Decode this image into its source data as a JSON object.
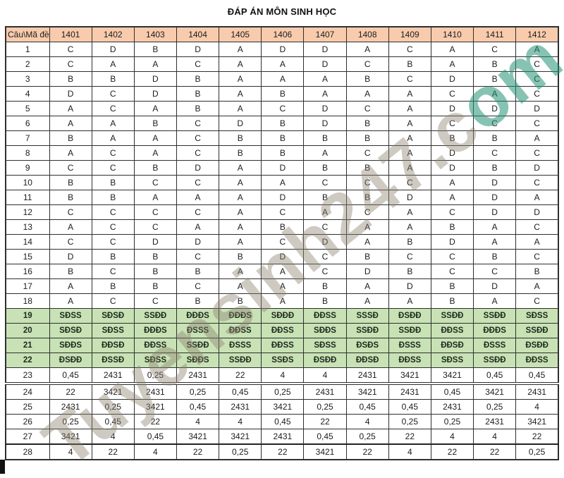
{
  "page": {
    "title": "ĐÁP ÁN MÔN SINH HỌC"
  },
  "watermark": {
    "text_main": "Tuyensinh247.c",
    "text_tail": "om"
  },
  "colors": {
    "header_bg": "#F8CBAD",
    "green_row_bg": "#C8E2B5",
    "border": "#2f2f2f",
    "watermark_gray": "rgba(138,128,110,0.42)",
    "watermark_green": "rgba(36,146,116,0.55)"
  },
  "table": {
    "corner_label": "Câu\\Mã đề",
    "code_headers": [
      "1401",
      "1402",
      "1403",
      "1404",
      "1405",
      "1406",
      "1407",
      "1408",
      "1409",
      "1410",
      "1411",
      "1412"
    ],
    "rows": [
      {
        "cau": "1",
        "type": "plain",
        "cells": [
          "C",
          "D",
          "B",
          "D",
          "A",
          "D",
          "D",
          "A",
          "C",
          "A",
          "C",
          "A"
        ]
      },
      {
        "cau": "2",
        "type": "plain",
        "cells": [
          "C",
          "A",
          "A",
          "C",
          "A",
          "A",
          "D",
          "C",
          "B",
          "A",
          "B",
          "C"
        ]
      },
      {
        "cau": "3",
        "type": "plain",
        "cells": [
          "B",
          "B",
          "D",
          "B",
          "A",
          "A",
          "A",
          "B",
          "C",
          "D",
          "B",
          "C"
        ]
      },
      {
        "cau": "4",
        "type": "plain",
        "cells": [
          "D",
          "C",
          "D",
          "B",
          "A",
          "B",
          "A",
          "A",
          "A",
          "C",
          "A",
          "C"
        ]
      },
      {
        "cau": "5",
        "type": "plain",
        "cells": [
          "A",
          "C",
          "A",
          "B",
          "A",
          "C",
          "D",
          "C",
          "A",
          "D",
          "D",
          "D"
        ]
      },
      {
        "cau": "6",
        "type": "plain",
        "cells": [
          "A",
          "A",
          "B",
          "C",
          "D",
          "B",
          "D",
          "B",
          "A",
          "C",
          "C",
          "C"
        ]
      },
      {
        "cau": "7",
        "type": "plain",
        "cells": [
          "B",
          "A",
          "A",
          "C",
          "B",
          "B",
          "B",
          "B",
          "A",
          "B",
          "B",
          "A"
        ]
      },
      {
        "cau": "8",
        "type": "plain",
        "cells": [
          "A",
          "C",
          "A",
          "C",
          "B",
          "B",
          "A",
          "C",
          "A",
          "D",
          "C",
          "C"
        ]
      },
      {
        "cau": "9",
        "type": "plain",
        "cells": [
          "C",
          "C",
          "B",
          "D",
          "A",
          "D",
          "B",
          "B",
          "A",
          "D",
          "B",
          "D"
        ]
      },
      {
        "cau": "10",
        "type": "plain",
        "cells": [
          "B",
          "B",
          "C",
          "C",
          "A",
          "A",
          "C",
          "C",
          "C",
          "A",
          "D",
          "C"
        ]
      },
      {
        "cau": "11",
        "type": "plain",
        "cells": [
          "B",
          "B",
          "A",
          "A",
          "A",
          "D",
          "B",
          "B",
          "D",
          "A",
          "D",
          "A"
        ]
      },
      {
        "cau": "12",
        "type": "plain",
        "cells": [
          "C",
          "C",
          "C",
          "C",
          "A",
          "C",
          "A",
          "C",
          "A",
          "C",
          "D",
          "D"
        ]
      },
      {
        "cau": "13",
        "type": "plain",
        "cells": [
          "A",
          "C",
          "C",
          "A",
          "A",
          "B",
          "C",
          "A",
          "A",
          "B",
          "A",
          "C"
        ]
      },
      {
        "cau": "14",
        "type": "plain",
        "cells": [
          "C",
          "C",
          "D",
          "D",
          "A",
          "C",
          "D",
          "A",
          "B",
          "D",
          "A",
          "A"
        ]
      },
      {
        "cau": "15",
        "type": "plain",
        "cells": [
          "D",
          "B",
          "B",
          "C",
          "B",
          "D",
          "C",
          "B",
          "C",
          "C",
          "B",
          "C"
        ]
      },
      {
        "cau": "16",
        "type": "plain",
        "cells": [
          "B",
          "C",
          "B",
          "B",
          "A",
          "A",
          "C",
          "D",
          "B",
          "C",
          "C",
          "B"
        ]
      },
      {
        "cau": "17",
        "type": "plain",
        "cells": [
          "A",
          "B",
          "B",
          "C",
          "A",
          "A",
          "B",
          "A",
          "D",
          "B",
          "D",
          "A"
        ]
      },
      {
        "cau": "18",
        "type": "plain",
        "cells": [
          "A",
          "C",
          "C",
          "B",
          "B",
          "A",
          "B",
          "A",
          "A",
          "B",
          "A",
          "C"
        ]
      },
      {
        "cau": "19",
        "type": "green",
        "cells": [
          "SĐSS",
          "SĐSĐ",
          "SSĐĐ",
          "ĐĐĐS",
          "ĐĐĐS",
          "SĐĐĐ",
          "ĐĐSS",
          "SSSĐ",
          "ĐSĐĐ",
          "SSĐĐ",
          "SSĐĐ",
          "SĐSS"
        ]
      },
      {
        "cau": "20",
        "type": "green",
        "cells": [
          "SĐSĐ",
          "SĐSS",
          "ĐĐĐS",
          "ĐSSS",
          "ĐĐSS",
          "ĐĐSS",
          "SĐĐS",
          "SSĐĐ",
          "SSĐĐ",
          "ĐĐSS",
          "ĐĐĐS",
          "SSĐĐ"
        ]
      },
      {
        "cau": "21",
        "type": "green",
        "cells": [
          "SĐĐS",
          "ĐĐSĐ",
          "ĐĐSS",
          "SSĐĐ",
          "ĐSSS",
          "ĐĐSS",
          "SĐSS",
          "ĐSĐS",
          "ĐSSS",
          "ĐĐSĐ",
          "ĐSSS",
          "ĐSĐĐ"
        ]
      },
      {
        "cau": "22",
        "type": "green",
        "cells": [
          "ĐSĐĐ",
          "ĐSSĐ",
          "SĐSS",
          "SĐĐS",
          "SSĐĐ",
          "SSĐS",
          "ĐSĐĐ",
          "ĐĐSĐ",
          "ĐĐSS",
          "SĐSS",
          "SSĐĐ",
          "ĐĐSS"
        ]
      },
      {
        "cau": "23",
        "type": "num",
        "divider_after": "double",
        "cells": [
          "0,45",
          "2431",
          "0,25",
          "2431",
          "22",
          "4",
          "4",
          "2431",
          "3421",
          "3421",
          "0,45",
          "0,45"
        ]
      },
      {
        "cau": "24",
        "type": "num",
        "cells": [
          "22",
          "3421",
          "2431",
          "0,25",
          "0,45",
          "0,25",
          "2431",
          "3421",
          "2431",
          "0,45",
          "3421",
          "2431"
        ]
      },
      {
        "cau": "25",
        "type": "num",
        "cells": [
          "2431",
          "0,25",
          "3421",
          "0,45",
          "2431",
          "3421",
          "0,25",
          "0,45",
          "0,45",
          "2431",
          "0,25",
          "4"
        ]
      },
      {
        "cau": "26",
        "type": "num",
        "cells": [
          "0,25",
          "0,45",
          "22",
          "4",
          "4",
          "0,45",
          "22",
          "4",
          "0,25",
          "0,25",
          "2431",
          "3421"
        ]
      },
      {
        "cau": "27",
        "type": "num",
        "divider_after": "thick",
        "cells": [
          "3421",
          "4",
          "0,45",
          "3421",
          "3421",
          "2431",
          "0,45",
          "0,25",
          "22",
          "4",
          "4",
          "22"
        ]
      },
      {
        "cau": "28",
        "type": "num",
        "cells": [
          "4",
          "22",
          "4",
          "22",
          "0,25",
          "22",
          "3421",
          "22",
          "4",
          "22",
          "22",
          "0,25"
        ]
      }
    ]
  }
}
